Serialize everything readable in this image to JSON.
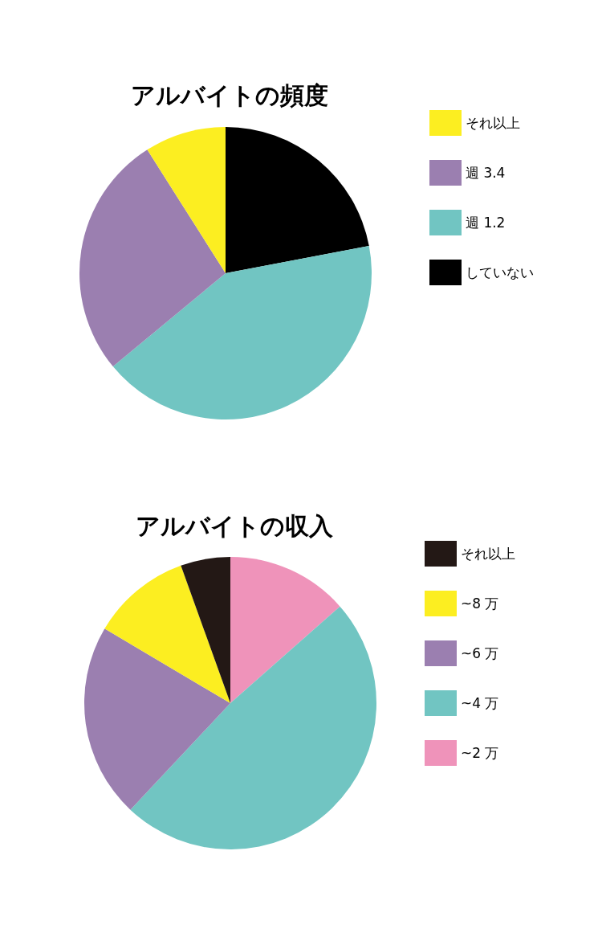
{
  "chart_data": [
    {
      "type": "pie",
      "title": "アルバイトの頻度",
      "categories": [
        "していない",
        "週 1.2",
        "週 3.4",
        "それ以上"
      ],
      "values": [
        22,
        42,
        27,
        9
      ],
      "colors": [
        "#000000",
        "#71c5c2",
        "#9b7fb0",
        "#fcee21"
      ],
      "legend": "right"
    },
    {
      "type": "pie",
      "title": "アルバイトの収入",
      "categories": [
        "~2 万",
        "~4 万",
        "~6 万",
        "~8 万",
        "それ以上"
      ],
      "values": [
        13.5,
        48.5,
        21.5,
        11,
        5.5
      ],
      "colors": [
        "#ef93ba",
        "#71c5c2",
        "#9b7fb0",
        "#fcee21",
        "#231815"
      ],
      "legend": "right"
    }
  ]
}
